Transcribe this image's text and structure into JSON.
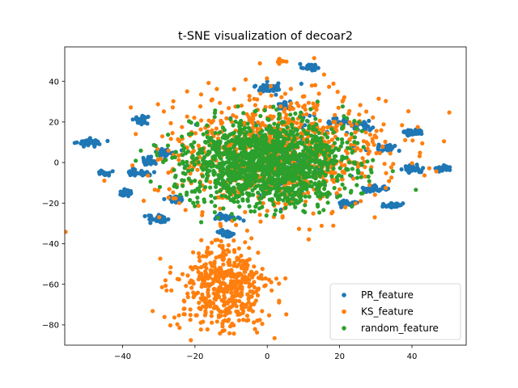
{
  "chart_data": {
    "type": "scatter",
    "title": "t-SNE visualization of decoar2",
    "xlabel": "",
    "ylabel": "",
    "xlim": [
      -56,
      55
    ],
    "ylim": [
      -90,
      57
    ],
    "xticks": [
      -40,
      -20,
      0,
      20,
      40
    ],
    "yticks": [
      -80,
      -60,
      -40,
      -20,
      0,
      20,
      40
    ],
    "xtick_labels": [
      "−40",
      "−20",
      "0",
      "20",
      "40"
    ],
    "ytick_labels": [
      "−80",
      "−60",
      "−40",
      "−20",
      "0",
      "20",
      "40"
    ],
    "grid": false,
    "legend_position": "bottom-right",
    "series": [
      {
        "name": "PR_feature",
        "color": "#1f77b4",
        "clusters": [
          {
            "x": 12,
            "y": 47,
            "sx": 1.2,
            "sy": 0.8,
            "n": 40
          },
          {
            "x": 0,
            "y": 37,
            "sx": 1.5,
            "sy": 1.2,
            "n": 40
          },
          {
            "x": -35,
            "y": 21,
            "sx": 1.0,
            "sy": 1.0,
            "n": 40
          },
          {
            "x": -49,
            "y": 10,
            "sx": 1.5,
            "sy": 0.8,
            "n": 50
          },
          {
            "x": 40,
            "y": 15,
            "sx": 1.5,
            "sy": 0.8,
            "n": 45
          },
          {
            "x": 49,
            "y": -3,
            "sx": 1.0,
            "sy": 0.6,
            "n": 35
          },
          {
            "x": 40,
            "y": -3,
            "sx": 1.2,
            "sy": 1.0,
            "n": 40
          },
          {
            "x": 35,
            "y": -21,
            "sx": 1.2,
            "sy": 0.8,
            "n": 40
          },
          {
            "x": -39,
            "y": -15,
            "sx": 1.0,
            "sy": 0.7,
            "n": 35
          },
          {
            "x": -35,
            "y": -5,
            "sx": 2.0,
            "sy": 0.8,
            "n": 40
          },
          {
            "x": -30,
            "y": -28,
            "sx": 1.5,
            "sy": 1.0,
            "n": 45
          },
          {
            "x": -11,
            "y": -35,
            "sx": 1.0,
            "sy": 0.8,
            "n": 40
          },
          {
            "x": -12,
            "y": -27,
            "sx": 1.5,
            "sy": 0.6,
            "n": 35
          },
          {
            "x": -25,
            "y": -18,
            "sx": 1.2,
            "sy": 0.8,
            "n": 35
          },
          {
            "x": -28,
            "y": 5,
            "sx": 1.5,
            "sy": 1.0,
            "n": 30
          },
          {
            "x": -33,
            "y": 1,
            "sx": 1.0,
            "sy": 1.0,
            "n": 25
          },
          {
            "x": 26,
            "y": 18,
            "sx": 1.5,
            "sy": 1.0,
            "n": 30
          },
          {
            "x": 33,
            "y": 7,
            "sx": 1.5,
            "sy": 1.0,
            "n": 30
          },
          {
            "x": 30,
            "y": -13,
            "sx": 2.0,
            "sy": 0.8,
            "n": 30
          },
          {
            "x": 22,
            "y": -20,
            "sx": 1.0,
            "sy": 0.8,
            "n": 25
          },
          {
            "x": 20,
            "y": 20,
            "sx": 1.5,
            "sy": 1.0,
            "n": 25
          },
          {
            "x": 5,
            "y": 28,
            "sx": 1.5,
            "sy": 1.0,
            "n": 20
          },
          {
            "x": -45,
            "y": -5,
            "sx": 1.0,
            "sy": 0.7,
            "n": 20
          },
          {
            "x": 5,
            "y": 5,
            "sx": 12.0,
            "sy": 12.0,
            "n": 90
          }
        ]
      },
      {
        "name": "KS_feature",
        "color": "#ff7f0e",
        "clusters": [
          {
            "x": 3,
            "y": 5,
            "sx": 15.0,
            "sy": 14.0,
            "n": 900
          },
          {
            "x": -12,
            "y": -62,
            "sx": 6.5,
            "sy": 11.0,
            "n": 480
          },
          {
            "x": 4,
            "y": 50,
            "sx": 0.8,
            "sy": 0.6,
            "n": 12
          }
        ]
      },
      {
        "name": "random_feature",
        "color": "#2ca02c",
        "clusters": [
          {
            "x": 0,
            "y": 0,
            "sx": 11.0,
            "sy": 10.0,
            "n": 1500
          }
        ]
      }
    ]
  }
}
